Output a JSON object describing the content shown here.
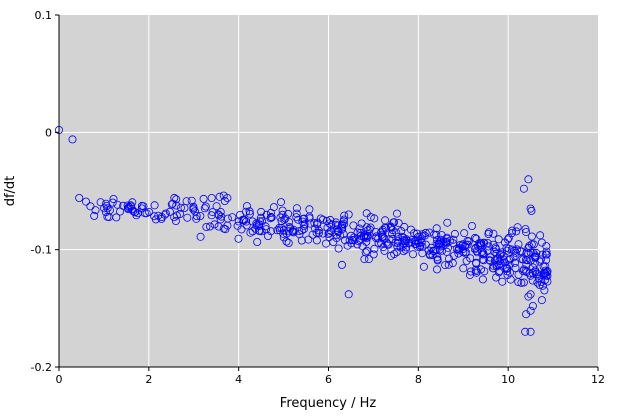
{
  "chart_data": {
    "type": "scatter",
    "title": "",
    "xlabel": "Frequency / Hz",
    "ylabel": "df/dt",
    "xlim": [
      0,
      12
    ],
    "ylim": [
      -0.2,
      0.1
    ],
    "xticks": [
      0,
      2,
      4,
      6,
      8,
      10,
      12
    ],
    "yticks": [
      -0.2,
      -0.1,
      0,
      0.1
    ],
    "xtick_labels": [
      "0",
      "2",
      "4",
      "6",
      "8",
      "10",
      "12"
    ],
    "ytick_labels": [
      "-0.2",
      "-0.1",
      "0",
      "0.1"
    ],
    "grid": true,
    "colors": {
      "background": "#d3d3d3",
      "grid": "#ffffff",
      "marker": "#0000ff"
    },
    "marker": "open-circle",
    "trend_segments": [
      {
        "x0": 0.6,
        "x1": 2.5,
        "y0": -0.065,
        "y1": -0.068,
        "spread": 0.004,
        "n": 45
      },
      {
        "x0": 2.5,
        "x1": 5.0,
        "y0": -0.068,
        "y1": -0.078,
        "spread": 0.008,
        "n": 95
      },
      {
        "x0": 5.0,
        "x1": 7.0,
        "y0": -0.078,
        "y1": -0.087,
        "spread": 0.007,
        "n": 110
      },
      {
        "x0": 7.0,
        "x1": 8.5,
        "y0": -0.087,
        "y1": -0.097,
        "spread": 0.008,
        "n": 110
      },
      {
        "x0": 8.5,
        "x1": 10.0,
        "y0": -0.097,
        "y1": -0.108,
        "spread": 0.01,
        "n": 120
      },
      {
        "x0": 10.0,
        "x1": 10.9,
        "y0": -0.108,
        "y1": -0.118,
        "spread": 0.012,
        "n": 80
      }
    ],
    "points": [
      [
        0.0,
        0.002
      ],
      [
        0.3,
        -0.006
      ],
      [
        0.45,
        -0.056
      ],
      [
        0.6,
        -0.059
      ],
      [
        0.7,
        -0.063
      ],
      [
        3.4,
        -0.056
      ],
      [
        3.75,
        -0.056
      ],
      [
        6.3,
        -0.113
      ],
      [
        6.45,
        -0.138
      ],
      [
        6.35,
        -0.071
      ],
      [
        6.45,
        -0.07
      ],
      [
        6.85,
        -0.069
      ],
      [
        6.8,
        -0.108
      ],
      [
        6.9,
        -0.108
      ],
      [
        10.35,
        -0.048
      ],
      [
        10.45,
        -0.04
      ],
      [
        10.5,
        -0.065
      ],
      [
        10.52,
        -0.067
      ],
      [
        10.4,
        -0.085
      ],
      [
        10.3,
        -0.108
      ],
      [
        10.35,
        -0.128
      ],
      [
        10.45,
        -0.14
      ],
      [
        10.4,
        -0.155
      ],
      [
        10.5,
        -0.152
      ],
      [
        10.5,
        -0.138
      ],
      [
        10.55,
        -0.148
      ],
      [
        10.38,
        -0.17
      ],
      [
        10.5,
        -0.17
      ],
      [
        10.7,
        -0.13
      ],
      [
        10.75,
        -0.143
      ],
      [
        10.75,
        -0.094
      ],
      [
        10.85,
        -0.097
      ],
      [
        10.6,
        -0.105
      ],
      [
        10.65,
        -0.128
      ],
      [
        10.55,
        -0.12
      ],
      [
        10.8,
        -0.12
      ],
      [
        10.85,
        -0.122
      ]
    ]
  }
}
